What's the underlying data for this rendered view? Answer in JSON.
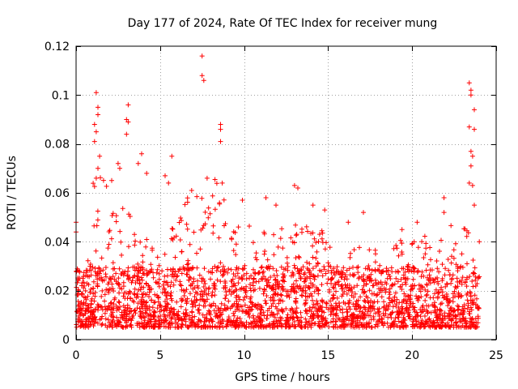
{
  "chart_data": {
    "type": "scatter",
    "title": "Day 177 of 2024, Rate Of TEC Index for receiver mung",
    "xlabel": "GPS time / hours",
    "ylabel": "ROTI / TECUs",
    "xlim": [
      0,
      25
    ],
    "ylim": [
      0,
      0.12
    ],
    "xticks": [
      0,
      5,
      10,
      15,
      20,
      25
    ],
    "xtick_labels": [
      "0",
      "5",
      "10",
      "15",
      "20",
      "25"
    ],
    "yticks": [
      0,
      0.02,
      0.04,
      0.06,
      0.08,
      0.1,
      0.12
    ],
    "ytick_labels": [
      "0",
      "0.02",
      "0.04",
      "0.06",
      "0.08",
      "0.1",
      "0.12"
    ],
    "grid": true,
    "marker": "+",
    "color": "#ff0000",
    "series": [
      {
        "name": "ROTI",
        "data_range_hours": [
          0,
          24
        ],
        "typical_band": [
          0.005,
          0.03
        ],
        "notable_points": [
          {
            "x": 0.0,
            "y": 0.048
          },
          {
            "x": 0.0,
            "y": 0.044
          },
          {
            "x": 1.2,
            "y": 0.101
          },
          {
            "x": 1.3,
            "y": 0.095
          },
          {
            "x": 1.3,
            "y": 0.092
          },
          {
            "x": 1.1,
            "y": 0.088
          },
          {
            "x": 1.2,
            "y": 0.085
          },
          {
            "x": 1.1,
            "y": 0.081
          },
          {
            "x": 1.4,
            "y": 0.075
          },
          {
            "x": 1.3,
            "y": 0.07
          },
          {
            "x": 1.2,
            "y": 0.066
          },
          {
            "x": 3.1,
            "y": 0.096
          },
          {
            "x": 3.0,
            "y": 0.09
          },
          {
            "x": 3.1,
            "y": 0.089
          },
          {
            "x": 3.0,
            "y": 0.084
          },
          {
            "x": 2.5,
            "y": 0.072
          },
          {
            "x": 2.6,
            "y": 0.07
          },
          {
            "x": 3.9,
            "y": 0.076
          },
          {
            "x": 3.7,
            "y": 0.072
          },
          {
            "x": 4.2,
            "y": 0.068
          },
          {
            "x": 5.7,
            "y": 0.075
          },
          {
            "x": 5.3,
            "y": 0.067
          },
          {
            "x": 5.5,
            "y": 0.064
          },
          {
            "x": 7.5,
            "y": 0.116
          },
          {
            "x": 7.5,
            "y": 0.108
          },
          {
            "x": 7.6,
            "y": 0.106
          },
          {
            "x": 7.8,
            "y": 0.066
          },
          {
            "x": 8.6,
            "y": 0.088
          },
          {
            "x": 8.6,
            "y": 0.086
          },
          {
            "x": 8.6,
            "y": 0.081
          },
          {
            "x": 8.7,
            "y": 0.064
          },
          {
            "x": 9.9,
            "y": 0.057
          },
          {
            "x": 11.3,
            "y": 0.058
          },
          {
            "x": 11.9,
            "y": 0.055
          },
          {
            "x": 13.0,
            "y": 0.063
          },
          {
            "x": 13.2,
            "y": 0.062
          },
          {
            "x": 14.1,
            "y": 0.055
          },
          {
            "x": 14.8,
            "y": 0.053
          },
          {
            "x": 16.2,
            "y": 0.048
          },
          {
            "x": 17.1,
            "y": 0.052
          },
          {
            "x": 19.4,
            "y": 0.045
          },
          {
            "x": 20.3,
            "y": 0.048
          },
          {
            "x": 21.9,
            "y": 0.058
          },
          {
            "x": 21.9,
            "y": 0.052
          },
          {
            "x": 23.4,
            "y": 0.105
          },
          {
            "x": 23.5,
            "y": 0.102
          },
          {
            "x": 23.5,
            "y": 0.1
          },
          {
            "x": 23.7,
            "y": 0.094
          },
          {
            "x": 23.4,
            "y": 0.087
          },
          {
            "x": 23.7,
            "y": 0.086
          },
          {
            "x": 23.5,
            "y": 0.077
          },
          {
            "x": 23.6,
            "y": 0.075
          },
          {
            "x": 23.5,
            "y": 0.071
          },
          {
            "x": 23.4,
            "y": 0.064
          },
          {
            "x": 23.6,
            "y": 0.063
          },
          {
            "x": 23.7,
            "y": 0.055
          },
          {
            "x": 24.0,
            "y": 0.04
          }
        ]
      }
    ]
  }
}
